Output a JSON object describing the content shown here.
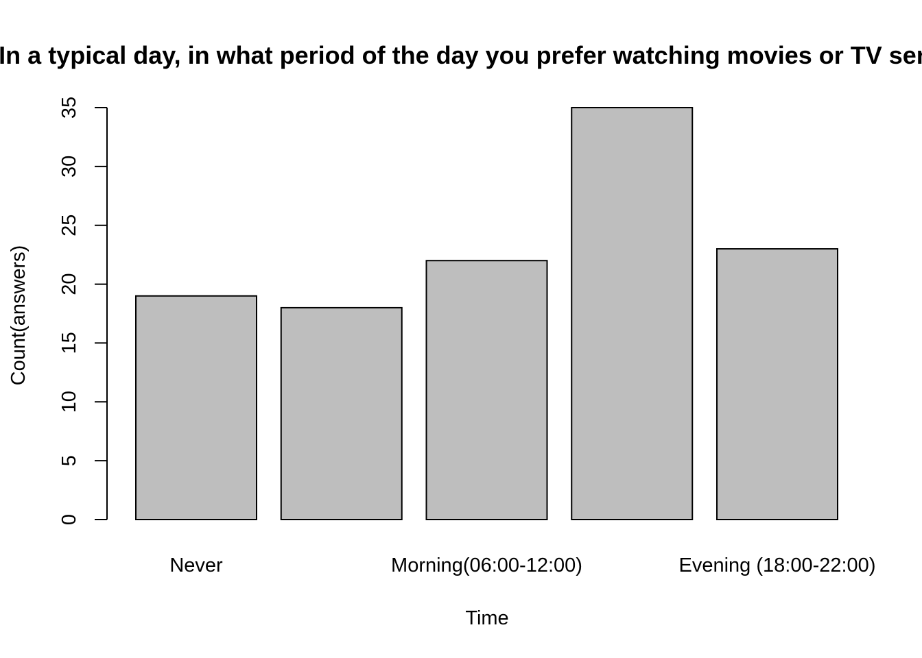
{
  "chart_data": {
    "type": "bar",
    "title": "In a typical day, in what period of the day you prefer watching movies or TV series?",
    "xlabel": "Time",
    "ylabel": "Count(answers)",
    "categories": [
      "Never",
      "",
      "Morning(06:00-12:00)",
      "",
      "Evening (18:00-22:00)"
    ],
    "values": [
      19,
      18,
      22,
      35,
      23
    ],
    "ylim": [
      0,
      35
    ],
    "yticks": [
      "0",
      "5",
      "10",
      "15",
      "20",
      "25",
      "30",
      "35"
    ],
    "bar_color": "#bebebe",
    "grid": false,
    "legend": "none"
  }
}
